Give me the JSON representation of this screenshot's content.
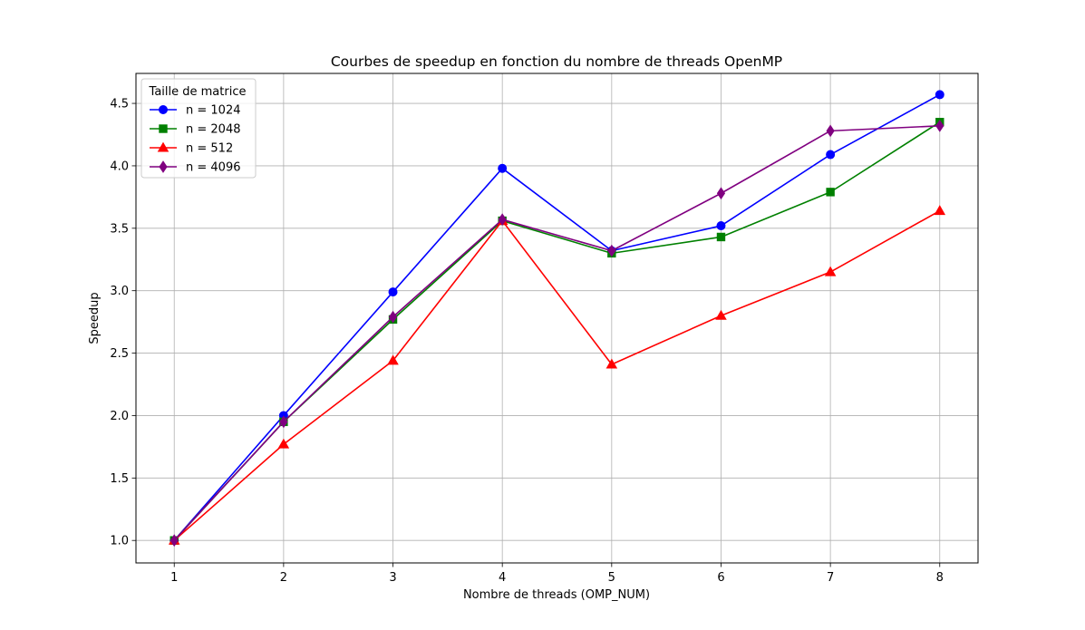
{
  "chart_data": {
    "type": "line",
    "title": "Courbes de speedup en fonction du nombre de threads OpenMP",
    "xlabel": "Nombre de threads (OMP_NUM)",
    "ylabel": "Speedup",
    "x": [
      1,
      2,
      3,
      4,
      5,
      6,
      7,
      8
    ],
    "xlim": [
      0.65,
      8.35
    ],
    "ylim": [
      0.82,
      4.74
    ],
    "xticks": [
      "1",
      "2",
      "3",
      "4",
      "5",
      "6",
      "7",
      "8"
    ],
    "yticks": [
      "1.0",
      "1.5",
      "2.0",
      "2.5",
      "3.0",
      "3.5",
      "4.0",
      "4.5"
    ],
    "grid": true,
    "legend": {
      "title": "Taille de matrice",
      "placement": "top-left"
    },
    "series": [
      {
        "name": "n = 1024",
        "color": "#0000ff",
        "marker": "circle",
        "values": [
          1.0,
          2.0,
          2.99,
          3.98,
          3.32,
          3.52,
          4.09,
          4.57
        ]
      },
      {
        "name": "n = 2048",
        "color": "#008000",
        "marker": "square",
        "values": [
          1.0,
          1.95,
          2.77,
          3.56,
          3.3,
          3.43,
          3.79,
          4.35
        ]
      },
      {
        "name": "n = 512",
        "color": "#ff0000",
        "marker": "triangle",
        "values": [
          1.0,
          1.77,
          2.44,
          3.56,
          2.41,
          2.8,
          3.15,
          3.64
        ]
      },
      {
        "name": "n = 4096",
        "color": "#800080",
        "marker": "diamond",
        "values": [
          1.0,
          1.95,
          2.79,
          3.57,
          3.32,
          3.78,
          4.28,
          4.32
        ]
      }
    ]
  }
}
